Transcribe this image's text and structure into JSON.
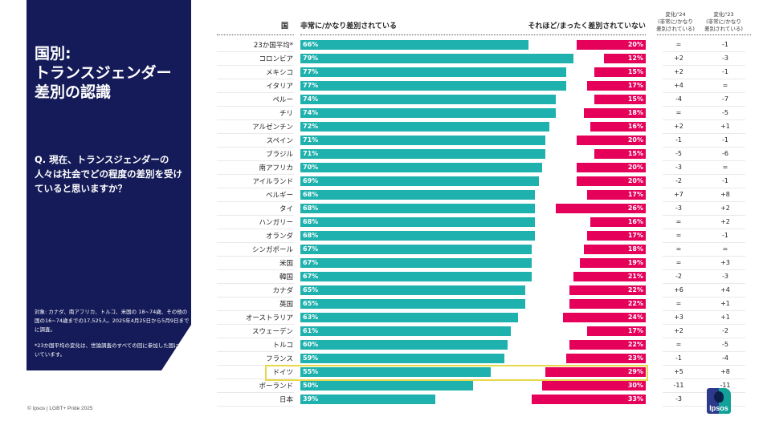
{
  "panel": {
    "title": "国別:\nトランスジェンダー\n差別の認識",
    "question": "Q. 現在、トランスジェンダーの人々は社会でどの程度の差別を受けていると思いますか？",
    "note1": "対象: カナダ、南アフリカ、トルコ、米国の 18~74歳、その他の国の16~74歳までの17,525人。2025年4月25日から5月9日までに調査。",
    "note2": "*23か国平均の変化は、世論調査のすべての回に参加した国に基づいています。"
  },
  "footer": "© Ipsos | LGBT+ Pride 2025",
  "logo": "Ipsos",
  "chart_data": {
    "type": "bar",
    "title": "国別:トランスジェンダー差別の認識",
    "headers": {
      "country": "国",
      "left": "非常に/かなり差別されている",
      "right": "それほど/まったく差別されていない",
      "change24": "変化/'24\n(非常に/かなり\n差別されている)",
      "change23": "変化/'23\n(非常に/かなり\n差別されている)"
    },
    "colors": {
      "left": "#1eb1ad",
      "right": "#e5005a",
      "highlight": "#e7d84a"
    },
    "highlighted": "日本",
    "categories": [
      "23か国平均*",
      "コロンビア",
      "メキシコ",
      "イタリア",
      "ペルー",
      "チリ",
      "アルゼンチン",
      "スペイン",
      "ブラジル",
      "南アフリカ",
      "アイルランド",
      "ベルギー",
      "タイ",
      "ハンガリー",
      "オランダ",
      "シンガポール",
      "米国",
      "韓国",
      "カナダ",
      "英国",
      "オーストラリア",
      "スウェーデン",
      "トルコ",
      "フランス",
      "ドイツ",
      "ポーランド",
      "日本"
    ],
    "series": [
      {
        "name": "非常に/かなり差別されている",
        "values": [
          66,
          79,
          77,
          77,
          74,
          74,
          72,
          71,
          71,
          70,
          69,
          68,
          68,
          68,
          68,
          67,
          67,
          67,
          65,
          65,
          63,
          61,
          60,
          59,
          55,
          50,
          39
        ]
      },
      {
        "name": "それほど/まったく差別されていない",
        "values": [
          20,
          12,
          15,
          17,
          15,
          18,
          16,
          20,
          15,
          20,
          20,
          17,
          26,
          16,
          17,
          18,
          19,
          21,
          22,
          22,
          24,
          17,
          22,
          23,
          29,
          30,
          33
        ]
      }
    ],
    "change24": [
      "=",
      "+2",
      "+2",
      "+4",
      "-4",
      "=",
      "+2",
      "-1",
      "-5",
      "-3",
      "-2",
      "+7",
      "-3",
      "=",
      "=",
      "=",
      "=",
      "-2",
      "+6",
      "=",
      "+3",
      "+2",
      "=",
      "-1",
      "+5",
      "-11",
      "-3"
    ],
    "change23": [
      "-1",
      "-3",
      "-1",
      "=",
      "-7",
      "-5",
      "+1",
      "-1",
      "-6",
      "=",
      "-1",
      "+8",
      "+2",
      "+2",
      "-1",
      "=",
      "+3",
      "-3",
      "+4",
      "+1",
      "+1",
      "-2",
      "-5",
      "-4",
      "+8",
      "-11",
      "-7"
    ],
    "value_unit": "%"
  }
}
